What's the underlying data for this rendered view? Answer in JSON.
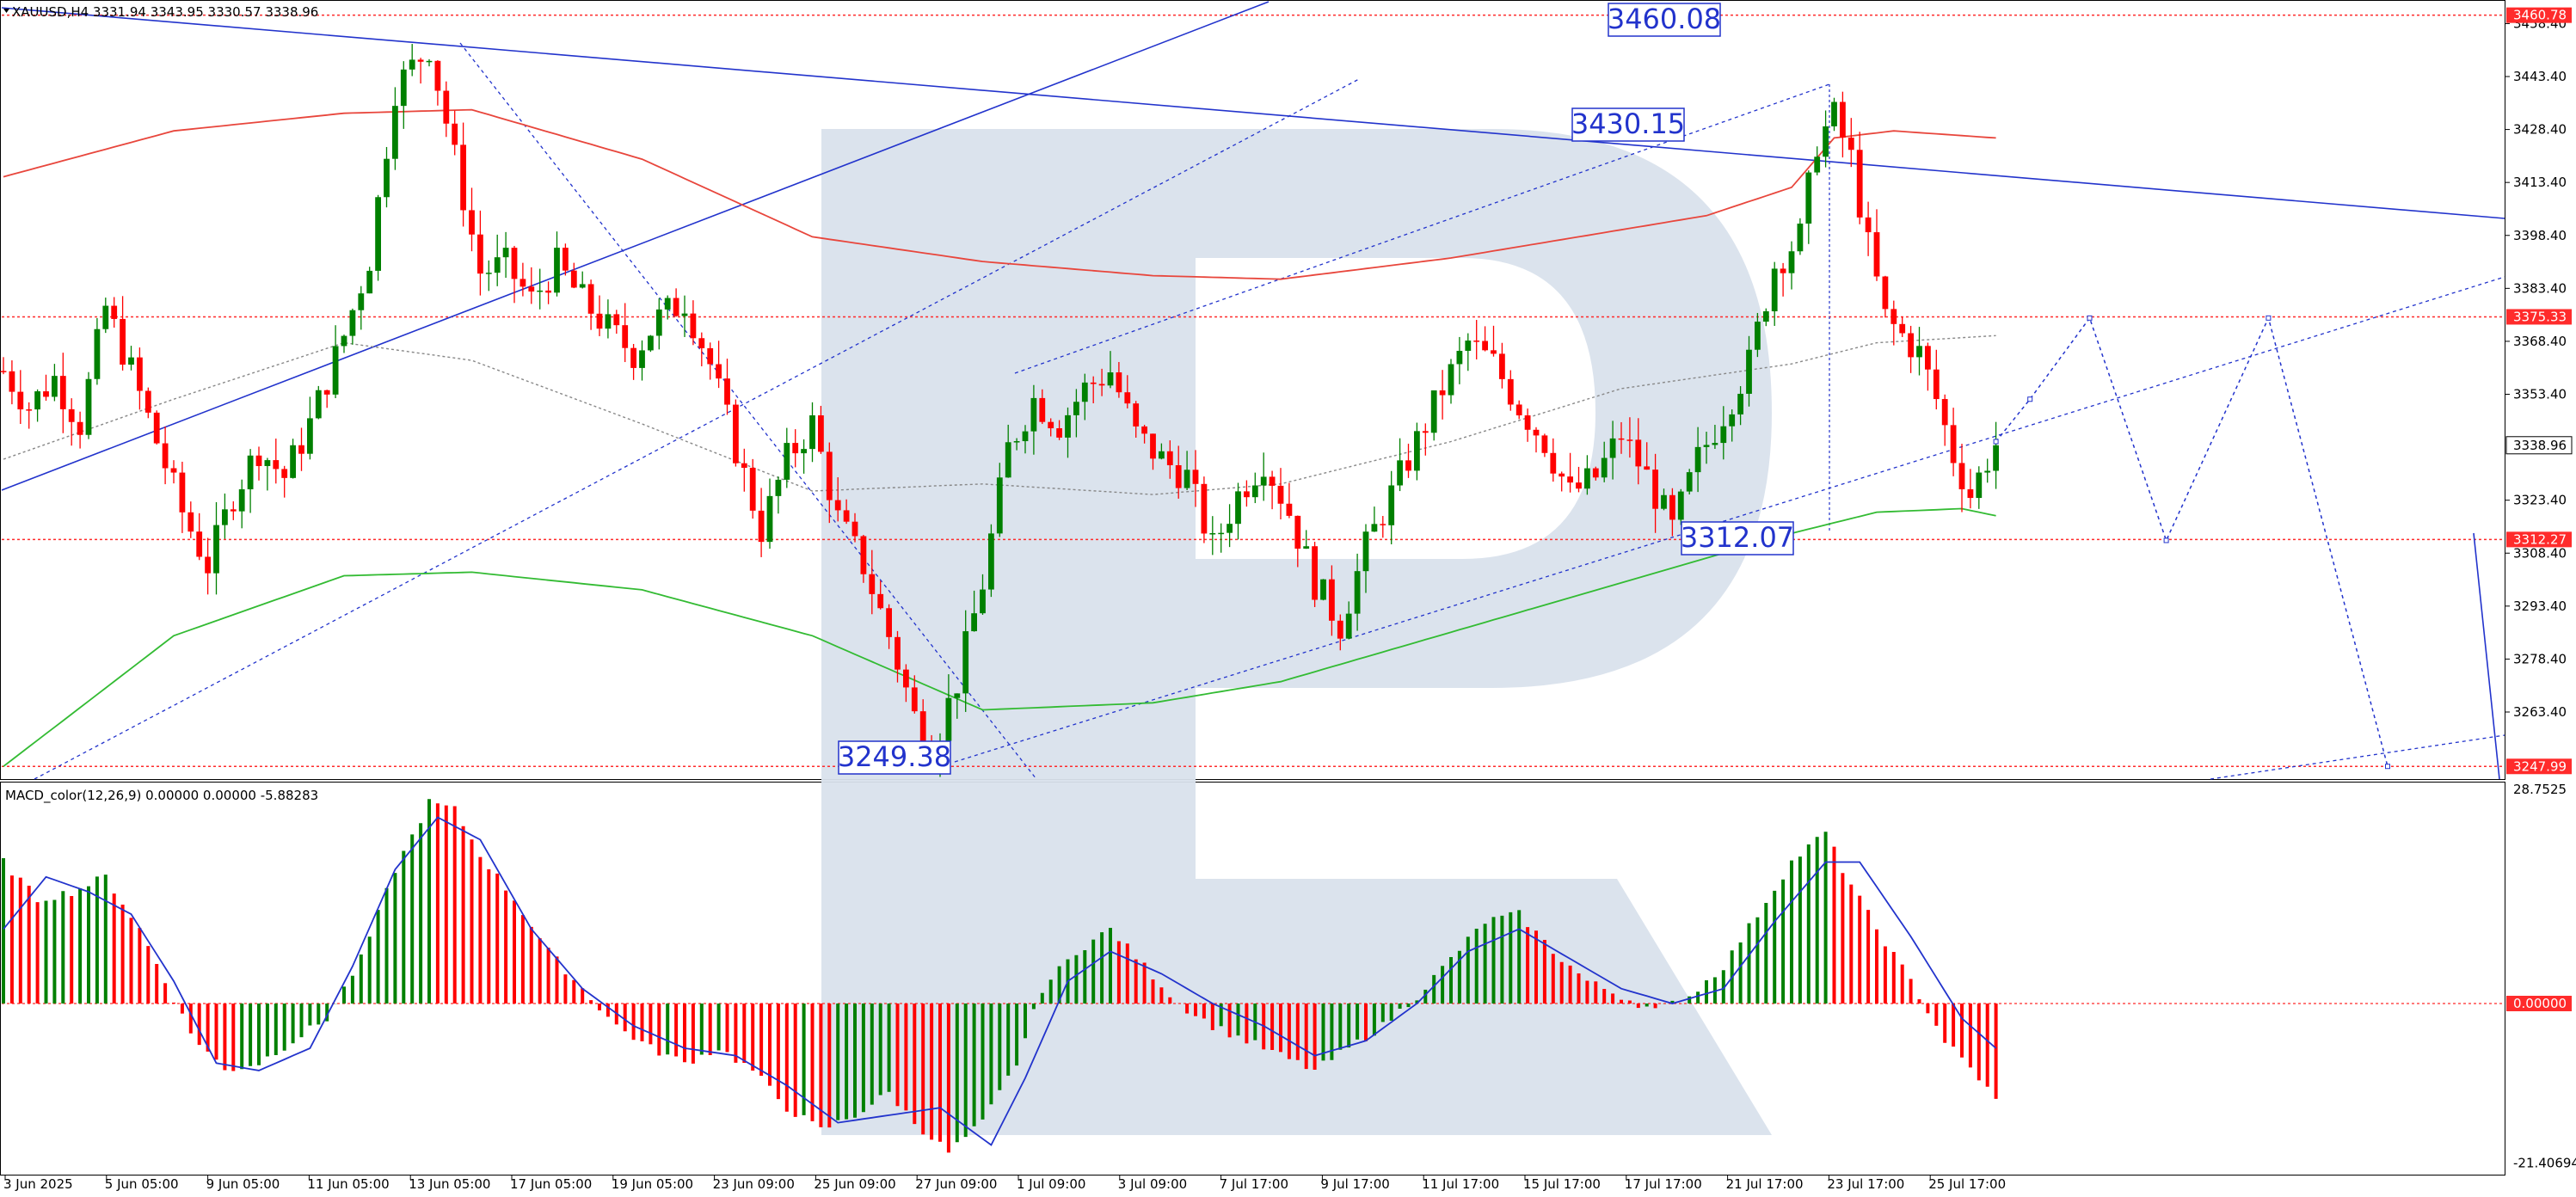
{
  "header": {
    "symbol_line": "XAUUSD,H4  3331.94 3343.95 3330.57 3338.96",
    "macd_label": "MACD_color(12,26,9) 0.00000 0.00000 -5.88283"
  },
  "colors": {
    "bull": "#008000",
    "bear": "#ff0000",
    "ma_red": "#e8463c",
    "ma_green": "#33bb33",
    "ma_dotted": "#888888",
    "trend_blue": "#2233cc",
    "watermark": "#d9e1ec",
    "level_red": "#ff2b2b",
    "axis_tag_red": "#ff2b2b",
    "price_tag_bg": "#ffffff"
  },
  "chart_data": [
    {
      "type": "candlestick",
      "symbol": "XAUUSD",
      "timeframe": "H4",
      "ylim": [
        3240,
        3468
      ],
      "y_ticks": [
        3443.4,
        3428.4,
        3413.4,
        3398.4,
        3383.4,
        3368.4,
        3353.4,
        3323.4,
        3308.4,
        3293.4,
        3278.4,
        3263.4
      ],
      "tick_label_top": "3458.40",
      "x_ticks": [
        "3 Jun 2025",
        "5 Jun 05:00",
        "9 Jun 05:00",
        "11 Jun 05:00",
        "13 Jun 05:00",
        "17 Jun 05:00",
        "19 Jun 05:00",
        "23 Jun 09:00",
        "25 Jun 09:00",
        "27 Jun 09:00",
        "1 Jul 09:00",
        "3 Jul 09:00",
        "7 Jul 17:00",
        "9 Jul 17:00",
        "11 Jul 17:00",
        "15 Jul 17:00",
        "17 Jul 17:00",
        "21 Jul 17:00",
        "23 Jul 17:00",
        "25 Jul 17:00"
      ],
      "last_price": "3338.96",
      "last_price_value": 3338.96,
      "levels": [
        {
          "value": 3460.78,
          "label": "3460.78"
        },
        {
          "value": 3375.33,
          "label": "3375.33"
        },
        {
          "value": 3312.27,
          "label": "3312.27"
        },
        {
          "value": 3247.99,
          "label": "3247.99"
        }
      ],
      "annotations": [
        {
          "text": "3460.08",
          "value": 3460.08
        },
        {
          "text": "3430.15",
          "value": 3430.15
        },
        {
          "text": "3312.07",
          "value": 3312.07
        },
        {
          "text": "3249.38",
          "value": 3249.38
        }
      ],
      "anchors": [
        {
          "bar": 0,
          "value": 3360
        },
        {
          "bar": 3,
          "value": 3350
        },
        {
          "bar": 6,
          "value": 3358
        },
        {
          "bar": 9,
          "value": 3345
        },
        {
          "bar": 12,
          "value": 3378
        },
        {
          "bar": 15,
          "value": 3360
        },
        {
          "bar": 18,
          "value": 3340
        },
        {
          "bar": 21,
          "value": 3320
        },
        {
          "bar": 24,
          "value": 3305
        },
        {
          "bar": 27,
          "value": 3325
        },
        {
          "bar": 30,
          "value": 3338
        },
        {
          "bar": 33,
          "value": 3330
        },
        {
          "bar": 36,
          "value": 3345
        },
        {
          "bar": 40,
          "value": 3370
        },
        {
          "bar": 43,
          "value": 3392
        },
        {
          "bar": 46,
          "value": 3440
        },
        {
          "bar": 50,
          "value": 3452
        },
        {
          "bar": 53,
          "value": 3420
        },
        {
          "bar": 56,
          "value": 3388
        },
        {
          "bar": 59,
          "value": 3390
        },
        {
          "bar": 62,
          "value": 3380
        },
        {
          "bar": 65,
          "value": 3390
        },
        {
          "bar": 68,
          "value": 3380
        },
        {
          "bar": 71,
          "value": 3372
        },
        {
          "bar": 74,
          "value": 3365
        },
        {
          "bar": 77,
          "value": 3375
        },
        {
          "bar": 80,
          "value": 3380
        },
        {
          "bar": 83,
          "value": 3362
        },
        {
          "bar": 86,
          "value": 3338
        },
        {
          "bar": 89,
          "value": 3315
        },
        {
          "bar": 92,
          "value": 3335
        },
        {
          "bar": 95,
          "value": 3345
        },
        {
          "bar": 98,
          "value": 3318
        },
        {
          "bar": 101,
          "value": 3305
        },
        {
          "bar": 104,
          "value": 3285
        },
        {
          "bar": 107,
          "value": 3262
        },
        {
          "bar": 109,
          "value": 3253
        },
        {
          "bar": 112,
          "value": 3272
        },
        {
          "bar": 115,
          "value": 3300
        },
        {
          "bar": 118,
          "value": 3338
        },
        {
          "bar": 121,
          "value": 3352
        },
        {
          "bar": 124,
          "value": 3345
        },
        {
          "bar": 127,
          "value": 3355
        },
        {
          "bar": 130,
          "value": 3360
        },
        {
          "bar": 133,
          "value": 3342
        },
        {
          "bar": 136,
          "value": 3335
        },
        {
          "bar": 139,
          "value": 3330
        },
        {
          "bar": 142,
          "value": 3310
        },
        {
          "bar": 145,
          "value": 3325
        },
        {
          "bar": 148,
          "value": 3335
        },
        {
          "bar": 151,
          "value": 3320
        },
        {
          "bar": 154,
          "value": 3300
        },
        {
          "bar": 157,
          "value": 3288
        },
        {
          "bar": 160,
          "value": 3310
        },
        {
          "bar": 163,
          "value": 3325
        },
        {
          "bar": 166,
          "value": 3340
        },
        {
          "bar": 169,
          "value": 3355
        },
        {
          "bar": 172,
          "value": 3368
        },
        {
          "bar": 175,
          "value": 3362
        },
        {
          "bar": 178,
          "value": 3350
        },
        {
          "bar": 181,
          "value": 3340
        },
        {
          "bar": 184,
          "value": 3325
        },
        {
          "bar": 187,
          "value": 3330
        },
        {
          "bar": 190,
          "value": 3342
        },
        {
          "bar": 193,
          "value": 3330
        },
        {
          "bar": 196,
          "value": 3315
        },
        {
          "bar": 199,
          "value": 3335
        },
        {
          "bar": 202,
          "value": 3348
        },
        {
          "bar": 205,
          "value": 3362
        },
        {
          "bar": 208,
          "value": 3390
        },
        {
          "bar": 211,
          "value": 3398
        },
        {
          "bar": 213,
          "value": 3425
        },
        {
          "bar": 215,
          "value": 3432
        },
        {
          "bar": 217,
          "value": 3420
        },
        {
          "bar": 219,
          "value": 3395
        },
        {
          "bar": 221,
          "value": 3375
        },
        {
          "bar": 223,
          "value": 3370
        },
        {
          "bar": 225,
          "value": 3365
        },
        {
          "bar": 227,
          "value": 3352
        },
        {
          "bar": 229,
          "value": 3336
        },
        {
          "bar": 231,
          "value": 3325
        },
        {
          "bar": 233,
          "value": 3335
        },
        {
          "bar": 234,
          "value": 3338.96
        }
      ],
      "ma_red": [
        {
          "bar": 0,
          "value": 3415
        },
        {
          "bar": 20,
          "value": 3428
        },
        {
          "bar": 40,
          "value": 3433
        },
        {
          "bar": 55,
          "value": 3434
        },
        {
          "bar": 75,
          "value": 3420
        },
        {
          "bar": 95,
          "value": 3398
        },
        {
          "bar": 115,
          "value": 3391
        },
        {
          "bar": 135,
          "value": 3387
        },
        {
          "bar": 150,
          "value": 3386
        },
        {
          "bar": 170,
          "value": 3392
        },
        {
          "bar": 185,
          "value": 3398
        },
        {
          "bar": 200,
          "value": 3404
        },
        {
          "bar": 210,
          "value": 3412
        },
        {
          "bar": 215,
          "value": 3426
        },
        {
          "bar": 222,
          "value": 3428
        },
        {
          "bar": 234,
          "value": 3426
        }
      ],
      "ma_green": [
        {
          "bar": 0,
          "value": 3248
        },
        {
          "bar": 20,
          "value": 3285
        },
        {
          "bar": 40,
          "value": 3302
        },
        {
          "bar": 55,
          "value": 3303
        },
        {
          "bar": 75,
          "value": 3298
        },
        {
          "bar": 95,
          "value": 3285
        },
        {
          "bar": 115,
          "value": 3264
        },
        {
          "bar": 135,
          "value": 3266
        },
        {
          "bar": 150,
          "value": 3272
        },
        {
          "bar": 170,
          "value": 3286
        },
        {
          "bar": 190,
          "value": 3300
        },
        {
          "bar": 210,
          "value": 3314
        },
        {
          "bar": 220,
          "value": 3320
        },
        {
          "bar": 230,
          "value": 3321
        },
        {
          "bar": 234,
          "value": 3319
        }
      ],
      "ma_dotted": [
        {
          "bar": 0,
          "value": 3335
        },
        {
          "bar": 20,
          "value": 3352
        },
        {
          "bar": 40,
          "value": 3368
        },
        {
          "bar": 55,
          "value": 3363
        },
        {
          "bar": 75,
          "value": 3345
        },
        {
          "bar": 95,
          "value": 3326
        },
        {
          "bar": 115,
          "value": 3328
        },
        {
          "bar": 135,
          "value": 3325
        },
        {
          "bar": 150,
          "value": 3328
        },
        {
          "bar": 170,
          "value": 3340
        },
        {
          "bar": 190,
          "value": 3355
        },
        {
          "bar": 210,
          "value": 3362
        },
        {
          "bar": 220,
          "value": 3368
        },
        {
          "bar": 234,
          "value": 3370
        }
      ],
      "forecast_path": [
        {
          "bar": 234,
          "value": 3340
        },
        {
          "bar": 238,
          "value": 3352
        },
        {
          "bar": 245,
          "value": 3375
        },
        {
          "bar": 254,
          "value": 3312
        },
        {
          "bar": 266,
          "value": 3375
        },
        {
          "bar": 280,
          "value": 3248
        }
      ]
    },
    {
      "type": "histogram",
      "title": "MACD_color(12,26,9)",
      "ylim": [
        -21.40694,
        28.7525
      ],
      "y_ticks": [
        28.7525,
        0.0,
        -21.40694
      ],
      "y_tick_labels": [
        "28.7525",
        "0.00000",
        "-21.40694"
      ],
      "zero_label": "0.00000",
      "histogram_anchors": [
        {
          "bar": 0,
          "value": 19
        },
        {
          "bar": 4,
          "value": 14
        },
        {
          "bar": 8,
          "value": 15
        },
        {
          "bar": 12,
          "value": 17
        },
        {
          "bar": 16,
          "value": 10
        },
        {
          "bar": 19,
          "value": 3
        },
        {
          "bar": 22,
          "value": -4
        },
        {
          "bar": 26,
          "value": -9
        },
        {
          "bar": 30,
          "value": -8
        },
        {
          "bar": 34,
          "value": -5
        },
        {
          "bar": 38,
          "value": -2
        },
        {
          "bar": 42,
          "value": 6
        },
        {
          "bar": 46,
          "value": 18
        },
        {
          "bar": 50,
          "value": 27
        },
        {
          "bar": 53,
          "value": 26
        },
        {
          "bar": 56,
          "value": 20
        },
        {
          "bar": 60,
          "value": 14
        },
        {
          "bar": 64,
          "value": 7
        },
        {
          "bar": 68,
          "value": 2
        },
        {
          "bar": 72,
          "value": -3
        },
        {
          "bar": 76,
          "value": -6
        },
        {
          "bar": 80,
          "value": -8
        },
        {
          "bar": 84,
          "value": -6
        },
        {
          "bar": 88,
          "value": -9
        },
        {
          "bar": 92,
          "value": -14
        },
        {
          "bar": 96,
          "value": -17
        },
        {
          "bar": 100,
          "value": -15
        },
        {
          "bar": 104,
          "value": -12
        },
        {
          "bar": 107,
          "value": -16
        },
        {
          "bar": 111,
          "value": -20
        },
        {
          "bar": 115,
          "value": -16
        },
        {
          "bar": 119,
          "value": -8
        },
        {
          "bar": 122,
          "value": 2
        },
        {
          "bar": 126,
          "value": 7
        },
        {
          "bar": 130,
          "value": 10
        },
        {
          "bar": 134,
          "value": 5
        },
        {
          "bar": 138,
          "value": 0
        },
        {
          "bar": 142,
          "value": -3
        },
        {
          "bar": 146,
          "value": -5
        },
        {
          "bar": 150,
          "value": -7
        },
        {
          "bar": 154,
          "value": -9
        },
        {
          "bar": 158,
          "value": -6
        },
        {
          "bar": 162,
          "value": -3
        },
        {
          "bar": 166,
          "value": 1
        },
        {
          "bar": 170,
          "value": 6
        },
        {
          "bar": 174,
          "value": 11
        },
        {
          "bar": 178,
          "value": 12
        },
        {
          "bar": 182,
          "value": 7
        },
        {
          "bar": 186,
          "value": 3
        },
        {
          "bar": 190,
          "value": 1
        },
        {
          "bar": 194,
          "value": -1
        },
        {
          "bar": 198,
          "value": 1
        },
        {
          "bar": 202,
          "value": 5
        },
        {
          "bar": 206,
          "value": 12
        },
        {
          "bar": 210,
          "value": 19
        },
        {
          "bar": 214,
          "value": 23
        },
        {
          "bar": 216,
          "value": 18
        },
        {
          "bar": 220,
          "value": 10
        },
        {
          "bar": 224,
          "value": 3
        },
        {
          "bar": 228,
          "value": -5
        },
        {
          "bar": 232,
          "value": -10
        },
        {
          "bar": 234,
          "value": -13
        }
      ],
      "signal_anchors": [
        {
          "bar": 0,
          "value": 10
        },
        {
          "bar": 5,
          "value": 17
        },
        {
          "bar": 10,
          "value": 15
        },
        {
          "bar": 15,
          "value": 12
        },
        {
          "bar": 20,
          "value": 3
        },
        {
          "bar": 25,
          "value": -8
        },
        {
          "bar": 30,
          "value": -9
        },
        {
          "bar": 36,
          "value": -6
        },
        {
          "bar": 41,
          "value": 5
        },
        {
          "bar": 46,
          "value": 18
        },
        {
          "bar": 51,
          "value": 25
        },
        {
          "bar": 56,
          "value": 22
        },
        {
          "bar": 62,
          "value": 10
        },
        {
          "bar": 68,
          "value": 2
        },
        {
          "bar": 74,
          "value": -3
        },
        {
          "bar": 80,
          "value": -6
        },
        {
          "bar": 86,
          "value": -7
        },
        {
          "bar": 92,
          "value": -11
        },
        {
          "bar": 98,
          "value": -16
        },
        {
          "bar": 104,
          "value": -15
        },
        {
          "bar": 110,
          "value": -14
        },
        {
          "bar": 116,
          "value": -19
        },
        {
          "bar": 120,
          "value": -10
        },
        {
          "bar": 125,
          "value": 3
        },
        {
          "bar": 130,
          "value": 7
        },
        {
          "bar": 136,
          "value": 4
        },
        {
          "bar": 142,
          "value": 0
        },
        {
          "bar": 148,
          "value": -3
        },
        {
          "bar": 154,
          "value": -7
        },
        {
          "bar": 160,
          "value": -5
        },
        {
          "bar": 166,
          "value": 0
        },
        {
          "bar": 172,
          "value": 7
        },
        {
          "bar": 178,
          "value": 10
        },
        {
          "bar": 184,
          "value": 6
        },
        {
          "bar": 190,
          "value": 2
        },
        {
          "bar": 196,
          "value": 0
        },
        {
          "bar": 202,
          "value": 2
        },
        {
          "bar": 208,
          "value": 11
        },
        {
          "bar": 214,
          "value": 19
        },
        {
          "bar": 218,
          "value": 19
        },
        {
          "bar": 224,
          "value": 9
        },
        {
          "bar": 230,
          "value": -2
        },
        {
          "bar": 234,
          "value": -6
        }
      ]
    }
  ]
}
